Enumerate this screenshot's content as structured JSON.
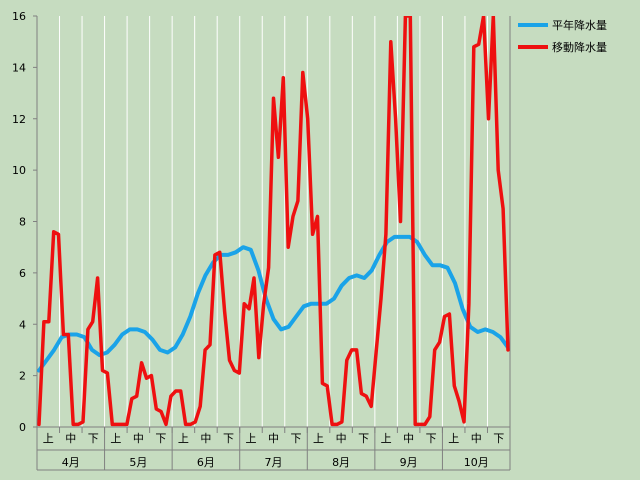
{
  "chart_data": {
    "type": "line",
    "title": "",
    "xlabel": "",
    "ylabel": "",
    "ylim": [
      0,
      16
    ],
    "yticks": [
      0,
      2,
      4,
      6,
      8,
      10,
      12,
      14,
      16
    ],
    "grid": true,
    "legend_position": "top-right",
    "months": [
      "4月",
      "5月",
      "6月",
      "7月",
      "8月",
      "9月",
      "10月"
    ],
    "dekads": [
      "上",
      "中",
      "下"
    ],
    "series": [
      {
        "name": "平年降水量",
        "color": "#1aa3e8",
        "values": [
          2.2,
          2.6,
          3.0,
          3.5,
          3.6,
          3.6,
          3.5,
          3.0,
          2.8,
          2.9,
          3.2,
          3.6,
          3.8,
          3.8,
          3.7,
          3.4,
          3.0,
          2.9,
          3.1,
          3.6,
          4.3,
          5.2,
          5.9,
          6.4,
          6.7,
          6.7,
          6.8,
          7.0,
          6.9,
          6.1,
          5.0,
          4.2,
          3.8,
          3.9,
          4.3,
          4.7,
          4.8,
          4.8,
          4.8,
          5.0,
          5.5,
          5.8,
          5.9,
          5.8,
          6.1,
          6.7,
          7.2,
          7.4,
          7.4,
          7.4,
          7.2,
          6.7,
          6.3,
          6.3,
          6.2,
          5.6,
          4.6,
          3.9,
          3.7,
          3.8,
          3.7,
          3.5,
          3.1
        ]
      },
      {
        "name": "移動降水量",
        "color": "#ee1010",
        "values": [
          0.1,
          4.1,
          4.1,
          7.6,
          7.5,
          3.6,
          3.6,
          0.1,
          0.1,
          0.2,
          3.8,
          4.1,
          5.8,
          2.2,
          2.1,
          0.1,
          0.1,
          0.1,
          0.1,
          1.1,
          1.2,
          2.5,
          1.9,
          2.0,
          0.7,
          0.6,
          0.1,
          1.2,
          1.4,
          1.4,
          0.1,
          0.1,
          0.2,
          0.8,
          3.0,
          3.2,
          6.7,
          6.8,
          4.5,
          2.6,
          2.2,
          2.1,
          4.8,
          4.6,
          5.8,
          2.7,
          4.8,
          6.2,
          12.8,
          10.5,
          13.6,
          7.0,
          8.2,
          8.8,
          13.8,
          12.0,
          7.5,
          8.2,
          1.7,
          1.6,
          0.1,
          0.1,
          0.2,
          2.6,
          3.0,
          3.0,
          1.3,
          1.2,
          0.8,
          2.9,
          5.0,
          7.5,
          15.0,
          12.0,
          8.0,
          16.0,
          16.0,
          0.1,
          0.1,
          0.1,
          0.4,
          3.0,
          3.3,
          4.3,
          4.4,
          1.6,
          1.0,
          0.2,
          4.8,
          14.8,
          14.9,
          16.0,
          12.0,
          16.0,
          10.0,
          8.5,
          3.0
        ]
      }
    ]
  }
}
